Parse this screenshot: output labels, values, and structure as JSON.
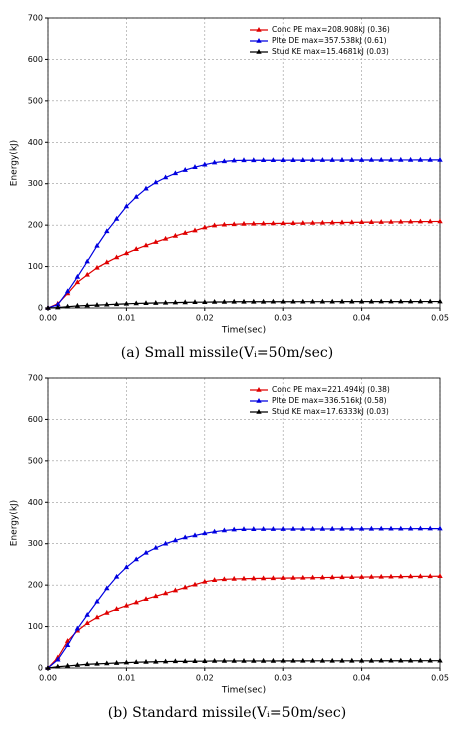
{
  "chart_data": [
    {
      "type": "line",
      "xlabel": "Time(sec)",
      "ylabel": "Energy(kJ)",
      "caption": "(a) Small missile(Vᵢ=50m/sec)",
      "x": [
        0,
        0.00125,
        0.0025,
        0.00375,
        0.005,
        0.00625,
        0.0075,
        0.00875,
        0.01,
        0.01125,
        0.0125,
        0.01375,
        0.015,
        0.01625,
        0.0175,
        0.01875,
        0.02,
        0.02125,
        0.0225,
        0.02375,
        0.025,
        0.02625,
        0.0275,
        0.02875,
        0.03,
        0.03125,
        0.0325,
        0.03375,
        0.035,
        0.03625,
        0.0375,
        0.03875,
        0.04,
        0.04125,
        0.0425,
        0.04375,
        0.045,
        0.04625,
        0.0475,
        0.04875,
        0.05
      ],
      "series": [
        {
          "name": "Conc PE max=208.908kJ (0.36)",
          "color": "#e00000",
          "values": [
            0,
            10,
            35,
            62,
            80,
            97,
            110,
            122,
            132,
            142,
            151,
            159,
            167,
            174,
            181,
            187,
            194,
            199,
            201,
            202,
            203,
            203.3,
            203.6,
            204,
            204.3,
            204.6,
            205,
            205.3,
            205.6,
            206,
            206.3,
            206.6,
            207,
            207.2,
            207.4,
            207.7,
            208,
            208.2,
            208.5,
            208.7,
            208.9
          ]
        },
        {
          "name": "Plte DE max=357.538kJ (0.61)",
          "color": "#0000e0",
          "values": [
            0,
            8,
            40,
            75,
            112,
            150,
            185,
            215,
            245,
            268,
            288,
            303,
            315,
            325,
            333,
            340,
            346,
            351,
            354,
            356,
            356.5,
            356.6,
            356.7,
            356.7,
            356.8,
            356.9,
            356.9,
            357,
            357,
            357.1,
            357.1,
            357.2,
            357.2,
            357.3,
            357.3,
            357.3,
            357.4,
            357.4,
            357.5,
            357.5,
            357.5
          ]
        },
        {
          "name": "Stud KE max=15.4681kJ (0.03)",
          "color": "#000000",
          "values": [
            0,
            1,
            3,
            5,
            6,
            7,
            8,
            9,
            10,
            11,
            11.5,
            12,
            12.5,
            13,
            13.5,
            14,
            14,
            14.5,
            14.5,
            15,
            15,
            15,
            15,
            15.1,
            15.1,
            15.1,
            15.2,
            15.2,
            15.2,
            15.2,
            15.3,
            15.3,
            15.3,
            15.3,
            15.4,
            15.4,
            15.4,
            15.4,
            15.5,
            15.5,
            15.5
          ]
        }
      ],
      "xlim": [
        0,
        0.05
      ],
      "ylim": [
        0,
        700
      ],
      "xticks": [
        {
          "value": 0,
          "label": "0.00"
        },
        {
          "value": 0.01,
          "label": "0.01"
        },
        {
          "value": 0.02,
          "label": "0.02"
        },
        {
          "value": 0.03,
          "label": "0.03"
        },
        {
          "value": 0.04,
          "label": "0.04"
        },
        {
          "value": 0.05,
          "label": "0.05"
        }
      ],
      "yticks": [
        0,
        100,
        200,
        300,
        400,
        500,
        600,
        700
      ],
      "grid": true,
      "legend": "upper right"
    },
    {
      "type": "line",
      "xlabel": "Time(sec)",
      "ylabel": "Energy(kJ)",
      "caption": "(b) Standard missile(Vᵢ=50m/sec)",
      "x": [
        0,
        0.00125,
        0.0025,
        0.00375,
        0.005,
        0.00625,
        0.0075,
        0.00875,
        0.01,
        0.01125,
        0.0125,
        0.01375,
        0.015,
        0.01625,
        0.0175,
        0.01875,
        0.02,
        0.02125,
        0.0225,
        0.02375,
        0.025,
        0.02625,
        0.0275,
        0.02875,
        0.03,
        0.03125,
        0.0325,
        0.03375,
        0.035,
        0.03625,
        0.0375,
        0.03875,
        0.04,
        0.04125,
        0.0425,
        0.04375,
        0.045,
        0.04625,
        0.0475,
        0.04875,
        0.05
      ],
      "series": [
        {
          "name": "Conc PE max=221.494kJ (0.38)",
          "color": "#e00000",
          "values": [
            0,
            25,
            65,
            90,
            108,
            122,
            133,
            142,
            150,
            158,
            166,
            173,
            180,
            187,
            194,
            201,
            208,
            212,
            214,
            215,
            215.5,
            216,
            216.3,
            216.6,
            217,
            217.3,
            217.6,
            218,
            218.3,
            218.6,
            219,
            219.2,
            219.5,
            219.8,
            220,
            220.3,
            220.6,
            220.9,
            221.1,
            221.3,
            221.5
          ]
        },
        {
          "name": "Plte DE max=336.516kJ (0.58)",
          "color": "#0000e0",
          "values": [
            0,
            20,
            55,
            95,
            128,
            160,
            192,
            220,
            243,
            262,
            278,
            290,
            300,
            308,
            315,
            320,
            325,
            329,
            332,
            334,
            335,
            335.1,
            335.2,
            335.3,
            335.4,
            335.5,
            335.5,
            335.6,
            335.7,
            335.7,
            335.8,
            335.9,
            335.9,
            336,
            336.1,
            336.1,
            336.2,
            336.3,
            336.4,
            336.5,
            336.5
          ]
        },
        {
          "name": "Stud KE max=17.6333kJ (0.03)",
          "color": "#000000",
          "values": [
            0,
            3,
            5,
            7,
            9,
            10,
            11,
            12,
            13,
            14,
            14.5,
            15,
            15.5,
            16,
            16,
            16.5,
            16.5,
            17,
            17,
            17,
            17,
            17.1,
            17.1,
            17.1,
            17.2,
            17.2,
            17.2,
            17.3,
            17.3,
            17.3,
            17.4,
            17.4,
            17.4,
            17.4,
            17.5,
            17.5,
            17.5,
            17.5,
            17.6,
            17.6,
            17.6
          ]
        }
      ],
      "xlim": [
        0,
        0.05
      ],
      "ylim": [
        0,
        700
      ],
      "xticks": [
        {
          "value": 0,
          "label": "0.00"
        },
        {
          "value": 0.01,
          "label": "0.01"
        },
        {
          "value": 0.02,
          "label": "0.02"
        },
        {
          "value": 0.03,
          "label": "0.03"
        },
        {
          "value": 0.04,
          "label": "0.04"
        },
        {
          "value": 0.05,
          "label": "0.05"
        }
      ],
      "yticks": [
        0,
        100,
        200,
        300,
        400,
        500,
        600,
        700
      ],
      "grid": true,
      "legend": "upper right"
    }
  ]
}
